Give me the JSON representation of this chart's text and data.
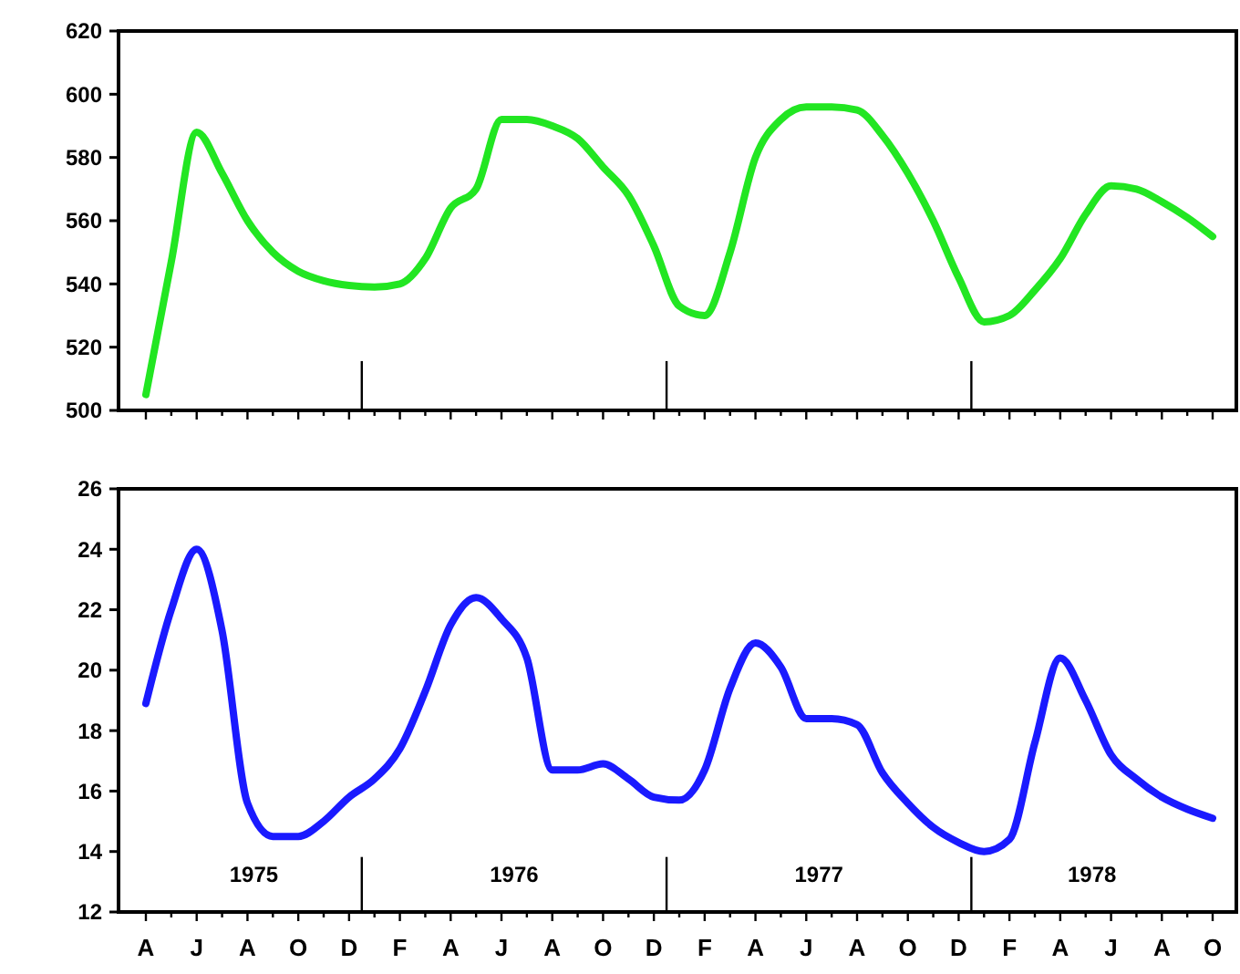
{
  "chart_data": [
    {
      "type": "line",
      "tick_labels": "y",
      "ylim": [
        500,
        620
      ],
      "yticks": [
        500,
        520,
        540,
        560,
        580,
        600,
        620
      ],
      "categories": [
        null,
        null,
        null,
        null,
        null,
        null,
        null,
        null,
        null,
        null,
        null,
        null,
        null,
        null,
        null,
        null,
        null,
        null,
        null,
        null,
        null,
        null,
        null,
        null,
        null,
        null,
        null,
        null,
        null,
        null,
        null,
        null,
        null,
        null,
        null,
        null,
        null,
        null,
        null,
        null,
        null,
        null,
        null
      ],
      "series": [
        {
          "color": "#22e622",
          "values": [
            505,
            547,
            588,
            575,
            560,
            550,
            544,
            541,
            539.5,
            539,
            540,
            548,
            564,
            570,
            592,
            592,
            590,
            586,
            577,
            568,
            552,
            533,
            530,
            550,
            580,
            592,
            596,
            596,
            595,
            587,
            575,
            560,
            542,
            528,
            530,
            538,
            548,
            562,
            571,
            570,
            566,
            561,
            555
          ]
        }
      ]
    },
    {
      "type": "line",
      "ylim": [
        12,
        26
      ],
      "yticks": [
        12,
        14,
        16,
        18,
        20,
        22,
        24,
        26
      ],
      "categories": [
        "A",
        null,
        "J",
        null,
        "A",
        null,
        "O",
        null,
        "D",
        null,
        "F",
        null,
        "A",
        null,
        "J",
        null,
        "A",
        null,
        "O",
        null,
        "D",
        null,
        "F",
        null,
        "A",
        null,
        "J",
        null,
        "A",
        null,
        "O",
        null,
        "D",
        null,
        "F",
        null,
        "A",
        null,
        "J",
        null,
        "A",
        null,
        "O"
      ],
      "annotations": [
        "1975",
        "1976",
        "1977",
        "1978"
      ],
      "series": [
        {
          "color": "#1a1aff",
          "values": [
            18.9,
            22,
            24,
            21.3,
            15.6,
            14.5,
            14.5,
            15,
            15.8,
            16.4,
            17.4,
            19.3,
            21.5,
            22.4,
            21.7,
            20.4,
            16.7,
            16.7,
            16.9,
            16.4,
            15.8,
            15.7,
            16.7,
            19.4,
            20.9,
            20.1,
            18.4,
            18.4,
            18.2,
            16.6,
            15.6,
            14.8,
            14.3,
            14,
            14.4,
            17.6,
            20.4,
            19,
            17.2,
            16.4,
            15.8,
            15.4,
            15.1
          ]
        }
      ]
    }
  ]
}
